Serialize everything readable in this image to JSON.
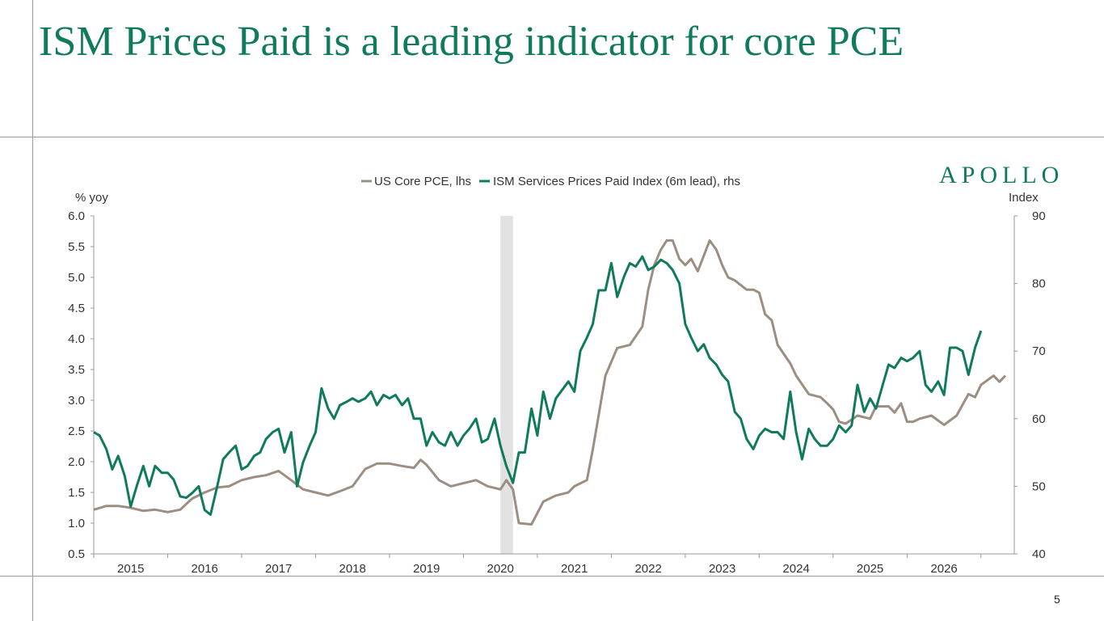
{
  "slide": {
    "title": "ISM Prices Paid is a leading indicator for core PCE",
    "page_number": "5"
  },
  "brand": {
    "logo_text": "APOLLO"
  },
  "colors": {
    "title": "#0f7a5c",
    "pce": "#9c8e80",
    "ism": "#0f7a5c",
    "shade": "#e2e2e2"
  },
  "chart_data": {
    "type": "line",
    "legend": {
      "position": "top-center",
      "entries": [
        "US Core PCE, lhs",
        "ISM Services Prices Paid Index (6m lead), rhs"
      ]
    },
    "y_left": {
      "label": "% yoy",
      "range": [
        0.5,
        6.0
      ],
      "ticks": [
        "0.5",
        "1.0",
        "1.5",
        "2.0",
        "2.5",
        "3.0",
        "3.5",
        "4.0",
        "4.5",
        "5.0",
        "5.5",
        "6.0"
      ]
    },
    "y_right": {
      "label": "Index",
      "range": [
        40,
        90
      ],
      "ticks": [
        "40",
        "50",
        "60",
        "70",
        "80",
        "90"
      ]
    },
    "x_axis": {
      "range": [
        2014.5,
        2026.95
      ],
      "ticks": [
        "2015",
        "2016",
        "2017",
        "2018",
        "2019",
        "2020",
        "2021",
        "2022",
        "2023",
        "2024",
        "2025",
        "2026"
      ]
    },
    "grid": false,
    "shaded_periods": [
      [
        2020.0,
        2020.17
      ]
    ],
    "series": [
      {
        "name": "US Core PCE, lhs",
        "axis": "left",
        "points": [
          [
            2014.5,
            1.22
          ],
          [
            2014.67,
            1.28
          ],
          [
            2014.83,
            1.28
          ],
          [
            2015.0,
            1.25
          ],
          [
            2015.17,
            1.2
          ],
          [
            2015.33,
            1.22
          ],
          [
            2015.5,
            1.18
          ],
          [
            2015.67,
            1.22
          ],
          [
            2015.83,
            1.4
          ],
          [
            2016.0,
            1.5
          ],
          [
            2016.17,
            1.58
          ],
          [
            2016.33,
            1.6
          ],
          [
            2016.5,
            1.7
          ],
          [
            2016.67,
            1.75
          ],
          [
            2016.83,
            1.78
          ],
          [
            2017.0,
            1.85
          ],
          [
            2017.17,
            1.7
          ],
          [
            2017.33,
            1.55
          ],
          [
            2017.5,
            1.5
          ],
          [
            2017.67,
            1.45
          ],
          [
            2017.83,
            1.52
          ],
          [
            2018.0,
            1.6
          ],
          [
            2018.17,
            1.88
          ],
          [
            2018.33,
            1.97
          ],
          [
            2018.5,
            1.97
          ],
          [
            2018.67,
            1.93
          ],
          [
            2018.83,
            1.9
          ],
          [
            2018.92,
            2.03
          ],
          [
            2019.0,
            1.95
          ],
          [
            2019.17,
            1.7
          ],
          [
            2019.33,
            1.6
          ],
          [
            2019.5,
            1.65
          ],
          [
            2019.67,
            1.7
          ],
          [
            2019.83,
            1.6
          ],
          [
            2020.0,
            1.55
          ],
          [
            2020.08,
            1.7
          ],
          [
            2020.17,
            1.55
          ],
          [
            2020.25,
            1.0
          ],
          [
            2020.42,
            0.98
          ],
          [
            2020.58,
            1.35
          ],
          [
            2020.75,
            1.45
          ],
          [
            2020.92,
            1.5
          ],
          [
            2021.0,
            1.6
          ],
          [
            2021.17,
            1.7
          ],
          [
            2021.25,
            2.2
          ],
          [
            2021.42,
            3.4
          ],
          [
            2021.58,
            3.85
          ],
          [
            2021.75,
            3.9
          ],
          [
            2021.92,
            4.2
          ],
          [
            2022.0,
            4.8
          ],
          [
            2022.08,
            5.2
          ],
          [
            2022.17,
            5.45
          ],
          [
            2022.25,
            5.6
          ],
          [
            2022.33,
            5.6
          ],
          [
            2022.42,
            5.3
          ],
          [
            2022.5,
            5.2
          ],
          [
            2022.58,
            5.3
          ],
          [
            2022.67,
            5.1
          ],
          [
            2022.83,
            5.6
          ],
          [
            2022.92,
            5.45
          ],
          [
            2023.0,
            5.2
          ],
          [
            2023.08,
            5.0
          ],
          [
            2023.17,
            4.95
          ],
          [
            2023.33,
            4.8
          ],
          [
            2023.42,
            4.8
          ],
          [
            2023.5,
            4.75
          ],
          [
            2023.58,
            4.4
          ],
          [
            2023.67,
            4.3
          ],
          [
            2023.75,
            3.9
          ],
          [
            2023.92,
            3.6
          ],
          [
            2024.0,
            3.4
          ],
          [
            2024.17,
            3.1
          ],
          [
            2024.33,
            3.05
          ],
          [
            2024.42,
            2.95
          ],
          [
            2024.5,
            2.85
          ],
          [
            2024.58,
            2.65
          ],
          [
            2024.67,
            2.62
          ],
          [
            2024.83,
            2.75
          ],
          [
            2025.0,
            2.7
          ],
          [
            2025.08,
            2.9
          ],
          [
            2025.25,
            2.9
          ],
          [
            2025.33,
            2.8
          ],
          [
            2025.42,
            2.95
          ],
          [
            2025.5,
            2.65
          ],
          [
            2025.58,
            2.65
          ],
          [
            2025.67,
            2.7
          ],
          [
            2025.83,
            2.75
          ],
          [
            2026.0,
            2.6
          ],
          [
            2026.17,
            2.75
          ],
          [
            2026.33,
            3.1
          ],
          [
            2026.42,
            3.05
          ],
          [
            2026.5,
            3.25
          ],
          [
            2026.67,
            3.4
          ],
          [
            2026.75,
            3.3
          ],
          [
            2026.83,
            3.4
          ]
        ]
      },
      {
        "name": "ISM Services Prices Paid Index (6m lead), rhs",
        "axis": "right",
        "points": [
          [
            2014.5,
            58.0
          ],
          [
            2014.58,
            57.5
          ],
          [
            2014.67,
            55.5
          ],
          [
            2014.75,
            52.5
          ],
          [
            2014.83,
            54.5
          ],
          [
            2014.92,
            51.5
          ],
          [
            2015.0,
            47.0
          ],
          [
            2015.08,
            50.0
          ],
          [
            2015.17,
            53.0
          ],
          [
            2015.25,
            50.0
          ],
          [
            2015.33,
            53.0
          ],
          [
            2015.42,
            52.0
          ],
          [
            2015.5,
            52.0
          ],
          [
            2015.58,
            51.0
          ],
          [
            2015.67,
            48.5
          ],
          [
            2015.75,
            48.3
          ],
          [
            2015.83,
            49.0
          ],
          [
            2015.92,
            50.0
          ],
          [
            2016.0,
            46.5
          ],
          [
            2016.08,
            45.8
          ],
          [
            2016.17,
            50.0
          ],
          [
            2016.25,
            54.0
          ],
          [
            2016.33,
            55.0
          ],
          [
            2016.42,
            56.0
          ],
          [
            2016.5,
            52.5
          ],
          [
            2016.58,
            53.0
          ],
          [
            2016.67,
            54.5
          ],
          [
            2016.75,
            55.0
          ],
          [
            2016.83,
            57.0
          ],
          [
            2016.92,
            58.0
          ],
          [
            2017.0,
            58.5
          ],
          [
            2017.08,
            55.0
          ],
          [
            2017.17,
            58.0
          ],
          [
            2017.25,
            50.0
          ],
          [
            2017.33,
            53.5
          ],
          [
            2017.42,
            56.0
          ],
          [
            2017.5,
            58.0
          ],
          [
            2017.58,
            64.5
          ],
          [
            2017.67,
            61.5
          ],
          [
            2017.75,
            60.0
          ],
          [
            2017.83,
            62.0
          ],
          [
            2017.92,
            62.5
          ],
          [
            2018.0,
            63.0
          ],
          [
            2018.08,
            62.5
          ],
          [
            2018.17,
            63.0
          ],
          [
            2018.25,
            64.0
          ],
          [
            2018.33,
            62.0
          ],
          [
            2018.42,
            63.5
          ],
          [
            2018.5,
            63.0
          ],
          [
            2018.58,
            63.5
          ],
          [
            2018.67,
            62.0
          ],
          [
            2018.75,
            63.0
          ],
          [
            2018.83,
            60.0
          ],
          [
            2018.92,
            60.0
          ],
          [
            2019.0,
            56.0
          ],
          [
            2019.08,
            58.0
          ],
          [
            2019.17,
            56.5
          ],
          [
            2019.25,
            56.0
          ],
          [
            2019.33,
            58.0
          ],
          [
            2019.42,
            56.0
          ],
          [
            2019.5,
            57.5
          ],
          [
            2019.58,
            58.5
          ],
          [
            2019.67,
            60.0
          ],
          [
            2019.75,
            56.5
          ],
          [
            2019.83,
            57.0
          ],
          [
            2019.92,
            60.0
          ],
          [
            2020.0,
            56.0
          ],
          [
            2020.08,
            53.0
          ],
          [
            2020.17,
            50.5
          ],
          [
            2020.25,
            55.0
          ],
          [
            2020.33,
            55.0
          ],
          [
            2020.42,
            61.5
          ],
          [
            2020.5,
            57.5
          ],
          [
            2020.58,
            64.0
          ],
          [
            2020.67,
            60.0
          ],
          [
            2020.75,
            63.0
          ],
          [
            2020.92,
            65.5
          ],
          [
            2021.0,
            64.0
          ],
          [
            2021.08,
            70.0
          ],
          [
            2021.17,
            72.0
          ],
          [
            2021.25,
            74.0
          ],
          [
            2021.33,
            79.0
          ],
          [
            2021.42,
            79.0
          ],
          [
            2021.5,
            83.0
          ],
          [
            2021.58,
            78.0
          ],
          [
            2021.67,
            81.0
          ],
          [
            2021.75,
            83.0
          ],
          [
            2021.83,
            82.5
          ],
          [
            2021.92,
            84.0
          ],
          [
            2022.0,
            82.0
          ],
          [
            2022.08,
            82.5
          ],
          [
            2022.17,
            83.5
          ],
          [
            2022.25,
            83.0
          ],
          [
            2022.33,
            82.0
          ],
          [
            2022.42,
            80.0
          ],
          [
            2022.5,
            74.0
          ],
          [
            2022.58,
            72.0
          ],
          [
            2022.67,
            70.0
          ],
          [
            2022.75,
            71.0
          ],
          [
            2022.83,
            69.0
          ],
          [
            2022.92,
            68.0
          ],
          [
            2023.0,
            66.5
          ],
          [
            2023.08,
            65.5
          ],
          [
            2023.17,
            61.0
          ],
          [
            2023.25,
            60.0
          ],
          [
            2023.33,
            57.0
          ],
          [
            2023.42,
            55.5
          ],
          [
            2023.5,
            57.5
          ],
          [
            2023.58,
            58.5
          ],
          [
            2023.67,
            58.0
          ],
          [
            2023.75,
            58.0
          ],
          [
            2023.83,
            57.0
          ],
          [
            2023.92,
            64.0
          ],
          [
            2024.0,
            58.0
          ],
          [
            2024.08,
            54.0
          ],
          [
            2024.17,
            58.5
          ],
          [
            2024.25,
            57.0
          ],
          [
            2024.33,
            56.0
          ],
          [
            2024.42,
            56.0
          ],
          [
            2024.5,
            57.0
          ],
          [
            2024.58,
            59.0
          ],
          [
            2024.67,
            58.0
          ],
          [
            2024.75,
            59.0
          ],
          [
            2024.83,
            65.0
          ],
          [
            2024.92,
            61.0
          ],
          [
            2025.0,
            63.0
          ],
          [
            2025.08,
            61.5
          ],
          [
            2025.17,
            65.0
          ],
          [
            2025.25,
            68.0
          ],
          [
            2025.33,
            67.5
          ],
          [
            2025.42,
            69.0
          ],
          [
            2025.5,
            68.5
          ],
          [
            2025.58,
            69.0
          ],
          [
            2025.67,
            70.0
          ],
          [
            2025.75,
            65.0
          ],
          [
            2025.83,
            64.0
          ],
          [
            2025.92,
            65.5
          ],
          [
            2026.0,
            63.5
          ],
          [
            2026.08,
            70.5
          ],
          [
            2026.17,
            70.5
          ],
          [
            2026.25,
            70.0
          ],
          [
            2026.33,
            66.5
          ],
          [
            2026.42,
            70.5
          ],
          [
            2026.5,
            73.0
          ]
        ]
      }
    ]
  }
}
